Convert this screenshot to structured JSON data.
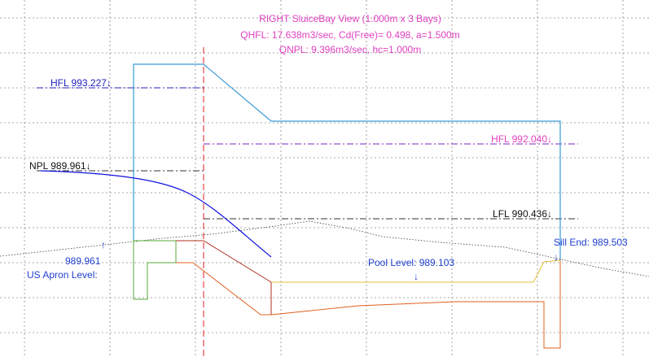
{
  "title": {
    "line1": "RIGHT SluiceBay View (1.000m x 3 Bays)",
    "line2": "QHFL: 17.638m3/sec, Cd(Free)= 0.498, a=1.500m",
    "line3": "QNPL: 9.396m3/sec, hc=1.000m"
  },
  "levels": {
    "hfl_us": "HFL 993.227↓",
    "npl_us": "NPL 989.961↓",
    "hfl_ds": "HFL 992.040↓",
    "lfl_ds": "LFL 990.436↓"
  },
  "annotations": {
    "us_apron_value": "989.961",
    "us_apron_label": "US Apron Level:",
    "pool_level": "Pool Level: 989.103",
    "sill_end": "Sill End: 989.503"
  },
  "colors": {
    "grid": "#8c8c8c",
    "title": "#e040c0",
    "annotation": "#2040d0",
    "structure": "#3a9bd6",
    "water_profile": "#1010e0",
    "center_line": "#e02020",
    "apron_green": "#5aaa3a",
    "floor_red": "#b03020",
    "floor_orange": "#e06020",
    "pool_yellow": "#e0c040",
    "ground": "#404040"
  }
}
